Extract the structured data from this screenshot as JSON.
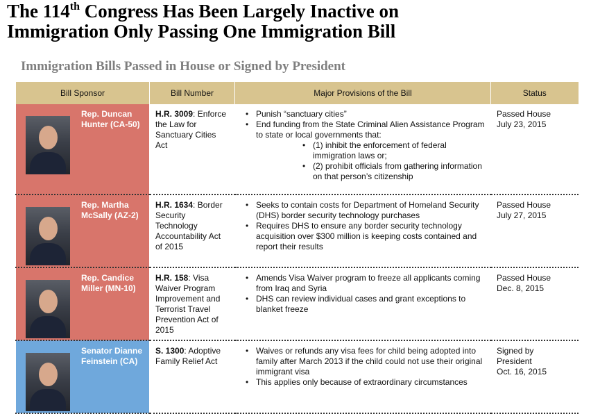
{
  "header": {
    "title": {
      "start": "The 114",
      "sup": "th",
      "rest": " Congress Has Been Largely Inactive on",
      "line2": "Immigration Only Passing One Immigration Bill"
    },
    "subtitle": "Immigration Bills Passed in House or Signed by President"
  },
  "table": {
    "columns": [
      "Bill Sponsor",
      "Bill Number",
      "Major Provisions of the Bill",
      "Status"
    ],
    "rows": [
      {
        "sponsor": "Rep. Duncan Hunter (CA-50)",
        "color": "#d8756b",
        "number": "H.R. 3009",
        "name": ": Enforce the Law for Sanctuary Cities Act",
        "provisions": [
          {
            "text": "Punish “sanctuary cities”"
          },
          {
            "text": "End funding from the State Criminal Alien Assistance Program to state or local governments that:",
            "sub": [
              "(1) inhibit the enforcement of federal immigration laws or;",
              "(2) prohibit officials from gathering information on that person’s citizenship"
            ]
          }
        ],
        "status": [
          "Passed House",
          "July 23, 2015"
        ]
      },
      {
        "sponsor": "Rep. Martha McSally (AZ-2)",
        "color": "#d8756b",
        "number": "H.R. 1634",
        "name": ": Border Security Technology Accountability Act of 2015",
        "provisions": [
          {
            "text": "Seeks to contain costs for Department of Homeland Security (DHS) border security technology purchases"
          },
          {
            "text": "Requires DHS to ensure any border security technology acquisition over $300 million is keeping costs contained and report their results"
          }
        ],
        "status": [
          "Passed House",
          "July 27, 2015"
        ]
      },
      {
        "sponsor": "Rep. Candice Miller (MN-10)",
        "color": "#d8756b",
        "number": "H.R. 158",
        "name": ": Visa Waiver Program Improvement and Terrorist Travel Prevention Act of 2015",
        "provisions": [
          {
            "text": "Amends Visa Waiver program to freeze all applicants coming from Iraq and Syria"
          },
          {
            "text": "DHS can review individual cases and grant exceptions to blanket freeze"
          }
        ],
        "status": [
          "Passed House",
          "Dec. 8, 2015"
        ]
      },
      {
        "sponsor": "Senator Dianne Feinstein (CA)",
        "color": "#6fa8dc",
        "number": "S. 1300",
        "name": ": Adoptive Family Relief Act",
        "provisions": [
          {
            "text": "Waives or refunds any visa fees for child being adopted into family after March 2013  if the child could not use their original immigrant visa"
          },
          {
            "text": "This applies only because of extraordinary circumstances"
          }
        ],
        "status": [
          "Signed by",
          "President",
          "Oct. 16, 2015"
        ]
      }
    ]
  }
}
